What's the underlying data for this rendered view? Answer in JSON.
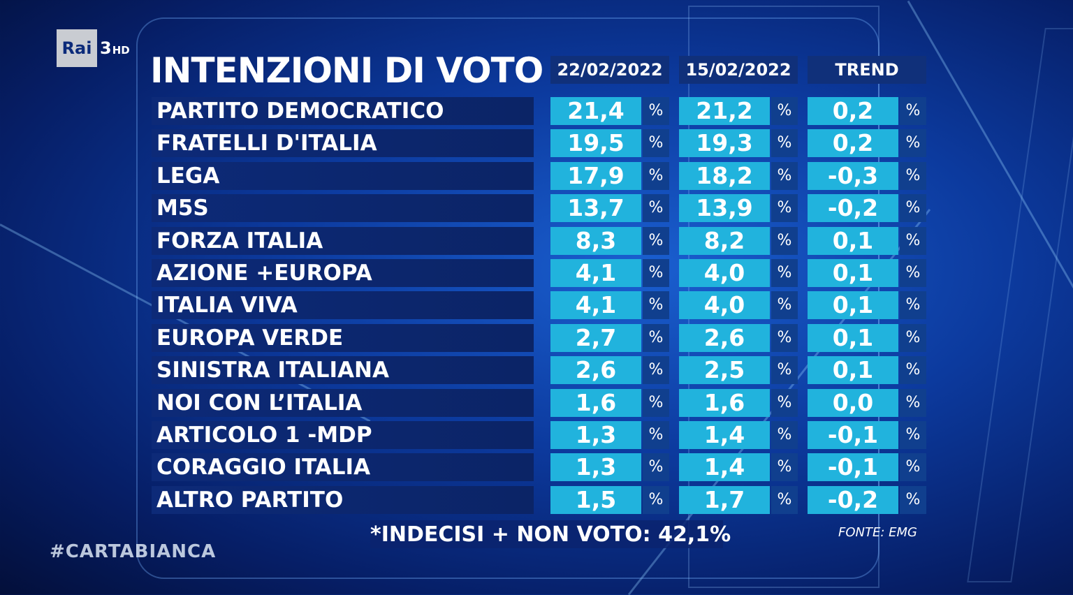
{
  "channel": {
    "logo_text": "Rai",
    "number": "3",
    "hd": "HD"
  },
  "title": "INTENZIONI DI VOTO",
  "columns": {
    "col1": "22/02/2022",
    "col2": "15/02/2022",
    "col3": "TREND"
  },
  "percent_symbol": "%",
  "rows": [
    {
      "party": "PARTITO DEMOCRATICO",
      "v1": "21,4",
      "v2": "21,2",
      "trend": "0,2"
    },
    {
      "party": "FRATELLI D'ITALIA",
      "v1": "19,5",
      "v2": "19,3",
      "trend": "0,2"
    },
    {
      "party": "LEGA",
      "v1": "17,9",
      "v2": "18,2",
      "trend": "-0,3"
    },
    {
      "party": "M5S",
      "v1": "13,7",
      "v2": "13,9",
      "trend": "-0,2"
    },
    {
      "party": "FORZA ITALIA",
      "v1": "8,3",
      "v2": "8,2",
      "trend": "0,1"
    },
    {
      "party": "AZIONE +EUROPA",
      "v1": "4,1",
      "v2": "4,0",
      "trend": "0,1"
    },
    {
      "party": "ITALIA VIVA",
      "v1": "4,1",
      "v2": "4,0",
      "trend": "0,1"
    },
    {
      "party": "EUROPA VERDE",
      "v1": "2,7",
      "v2": "2,6",
      "trend": "0,1"
    },
    {
      "party": "SINISTRA ITALIANA",
      "v1": "2,6",
      "v2": "2,5",
      "trend": "0,1"
    },
    {
      "party": "NOI CON L’ITALIA",
      "v1": "1,6",
      "v2": "1,6",
      "trend": "0,0"
    },
    {
      "party": "ARTICOLO 1 -MDP",
      "v1": "1,3",
      "v2": "1,4",
      "trend": "-0,1"
    },
    {
      "party": "CORAGGIO ITALIA",
      "v1": "1,3",
      "v2": "1,4",
      "trend": "-0,1"
    },
    {
      "party": "ALTRO PARTITO",
      "v1": "1,5",
      "v2": "1,7",
      "trend": "-0,2"
    }
  ],
  "footer_note": "*INDECISI + NON VOTO: 42,1%",
  "source": "FONTE: EMG",
  "hashtag": "#CARTABIANCA",
  "colors": {
    "value_cell": "#21b3dd",
    "percent_cell": "#103f8e",
    "party_cell": "#0d2a78",
    "background": "#0c3a9e"
  },
  "chart_data": {
    "type": "table",
    "title": "INTENZIONI DI VOTO",
    "columns": [
      "22/02/2022",
      "15/02/2022",
      "TREND"
    ],
    "categories": [
      "PARTITO DEMOCRATICO",
      "FRATELLI D'ITALIA",
      "LEGA",
      "M5S",
      "FORZA ITALIA",
      "AZIONE +EUROPA",
      "ITALIA VIVA",
      "EUROPA VERDE",
      "SINISTRA ITALIANA",
      "NOI CON L’ITALIA",
      "ARTICOLO 1 -MDP",
      "CORAGGIO ITALIA",
      "ALTRO PARTITO"
    ],
    "series": [
      {
        "name": "22/02/2022",
        "values": [
          21.4,
          19.5,
          17.9,
          13.7,
          8.3,
          4.1,
          4.1,
          2.7,
          2.6,
          1.6,
          1.3,
          1.3,
          1.5
        ]
      },
      {
        "name": "15/02/2022",
        "values": [
          21.2,
          19.3,
          18.2,
          13.9,
          8.2,
          4.0,
          4.0,
          2.6,
          2.5,
          1.6,
          1.4,
          1.4,
          1.7
        ]
      },
      {
        "name": "TREND",
        "values": [
          0.2,
          0.2,
          -0.3,
          -0.2,
          0.1,
          0.1,
          0.1,
          0.1,
          0.1,
          0.0,
          -0.1,
          -0.1,
          -0.2
        ]
      }
    ],
    "unit": "%"
  }
}
